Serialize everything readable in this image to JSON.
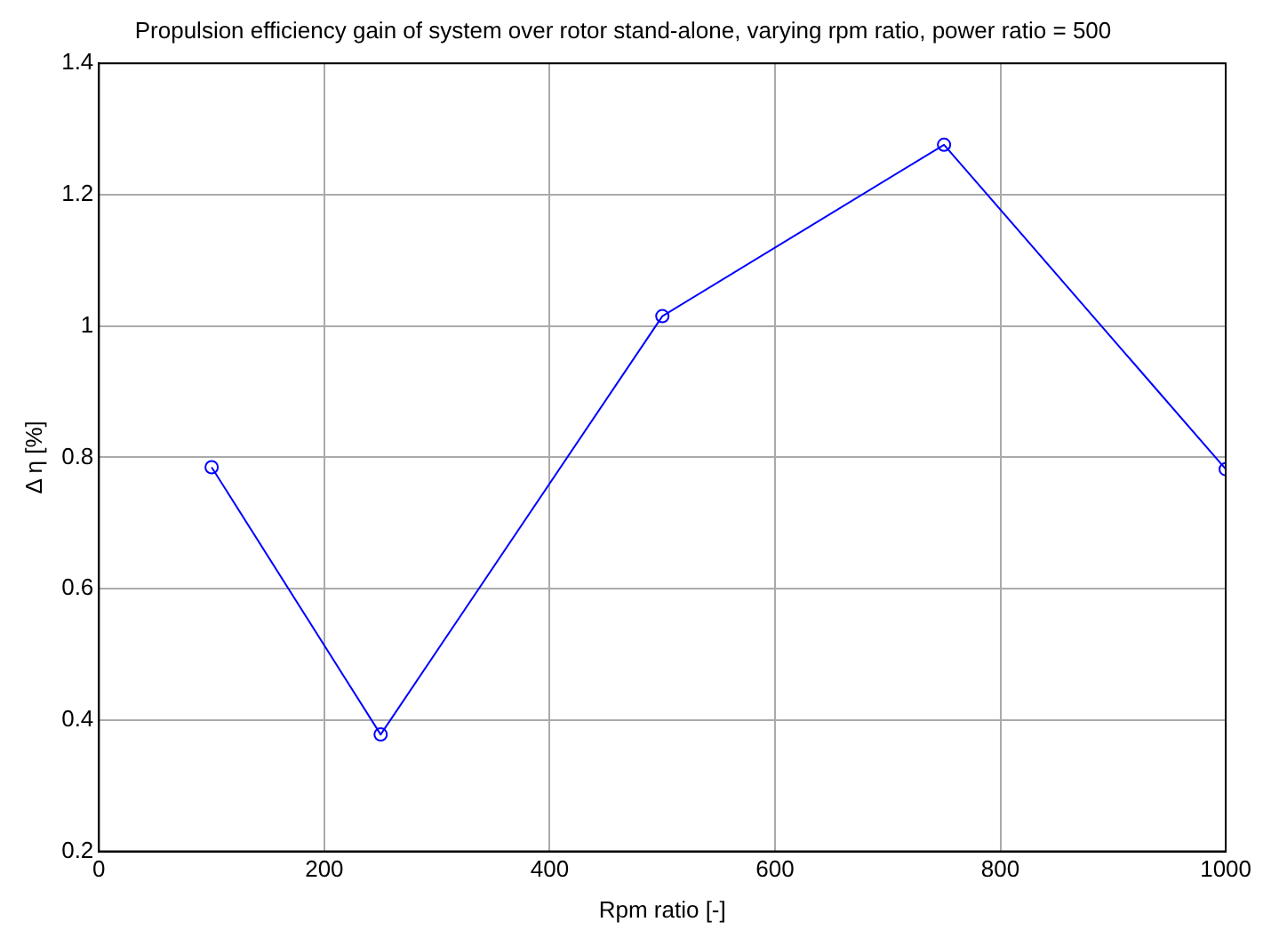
{
  "chart_data": {
    "type": "line",
    "title": "Propulsion efficiency gain of system over rotor stand-alone, varying rpm ratio, power ratio = 500",
    "xlabel": "Rpm ratio [-]",
    "ylabel": "Δ η [%]",
    "x": [
      100,
      250,
      500,
      750,
      1000
    ],
    "series": [
      {
        "color": "#0000ff",
        "values": [
          0.785,
          0.378,
          1.015,
          1.276,
          0.782
        ]
      }
    ],
    "xlim": [
      0,
      1000
    ],
    "xticks": [
      0,
      200,
      400,
      600,
      800,
      1000
    ],
    "ylim": [
      0.2,
      1.4
    ],
    "yticks": [
      0.2,
      0.4,
      0.6,
      0.8,
      1,
      1.2,
      1.4
    ],
    "grid": true,
    "marker": "circle",
    "line_style": "solid",
    "legend": false
  }
}
